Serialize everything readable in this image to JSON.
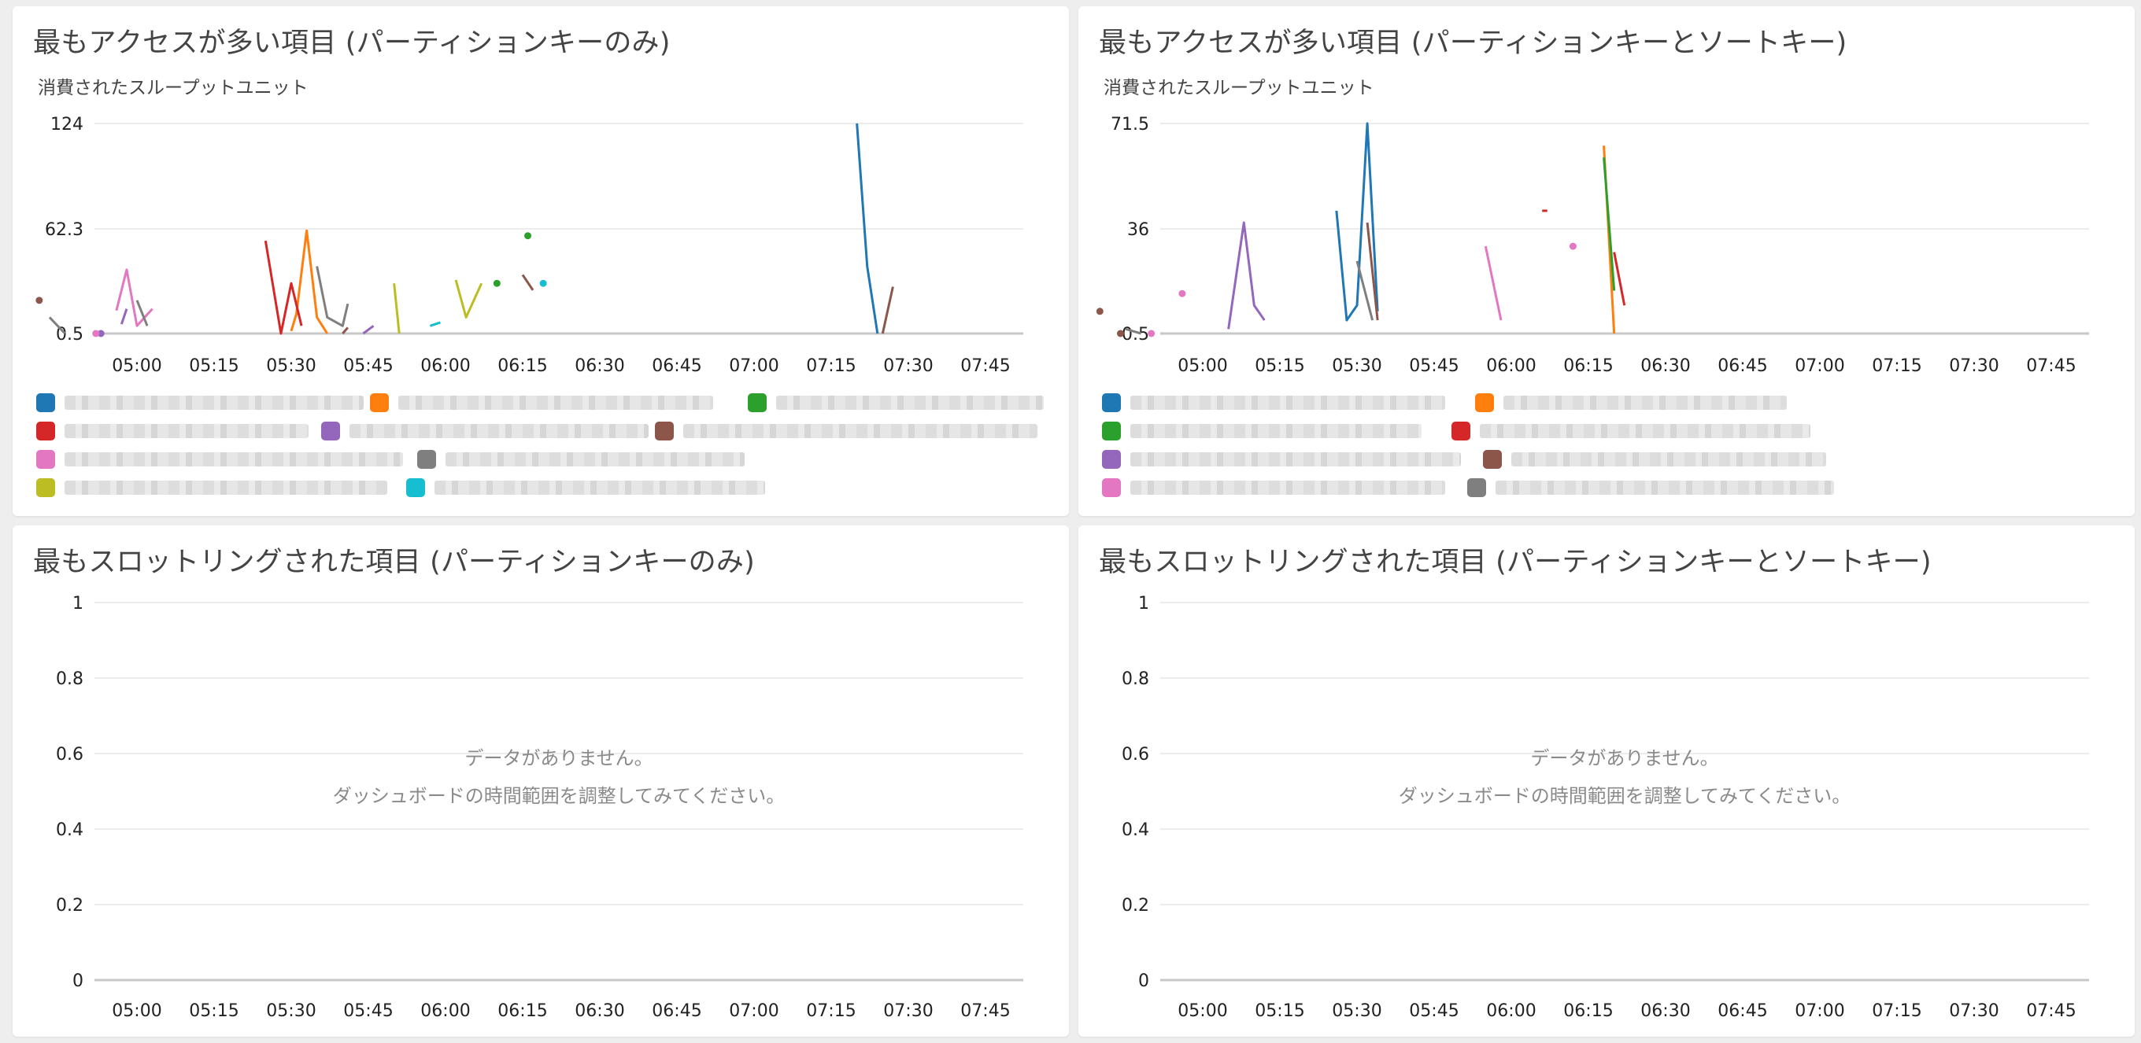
{
  "colors": {
    "c1": "#1f77b4",
    "c2": "#ff7f0e",
    "c3": "#2ca02c",
    "c4": "#d62728",
    "c5": "#9467bd",
    "c6": "#8c564b",
    "c7": "#e377c2",
    "c8": "#7f7f7f",
    "c9": "#bcbd22",
    "c10": "#17becf"
  },
  "panels": {
    "p1": {
      "title": "最もアクセスが多い項目 (パーティションキーのみ)",
      "unit": "消費されたスループットユニット"
    },
    "p2": {
      "title": "最もアクセスが多い項目 (パーティションキーとソートキー)",
      "unit": "消費されたスループットユニット"
    },
    "p3": {
      "title": "最もスロットリングされた項目 (パーティションキーのみ)",
      "nodata1": "データがありません。",
      "nodata2": "ダッシュボードの時間範囲を調整してみてください。"
    },
    "p4": {
      "title": "最もスロットリングされた項目 (パーティションキーとソートキー)",
      "nodata1": "データがありません。",
      "nodata2": "ダッシュボードの時間範囲を調整してみてください。"
    }
  },
  "chart_data": [
    {
      "type": "line",
      "ylabel": "消費されたスループットユニット",
      "yticks": [
        "124",
        "62.3",
        "0.5"
      ],
      "ylim": [
        0.5,
        124
      ],
      "xticks": [
        "05:00",
        "05:15",
        "05:30",
        "05:45",
        "06:00",
        "06:15",
        "06:30",
        "06:45",
        "07:00",
        "07:15",
        "07:30",
        "07:45"
      ],
      "series": [
        {
          "color": "#1f77b4",
          "points": [
            [
              440,
              124
            ],
            [
              442,
              40
            ],
            [
              444,
              0.5
            ]
          ]
        },
        {
          "color": "#ff7f0e",
          "points": [
            [
              330,
              2
            ],
            [
              331,
              12
            ],
            [
              333,
              61
            ],
            [
              335,
              10
            ],
            [
              337,
              0.5
            ]
          ]
        },
        {
          "color": "#2ca02c",
          "points": [
            [
              370,
              30
            ],
            [
              376,
              58
            ]
          ]
        },
        {
          "color": "#d62728",
          "points": [
            [
              325,
              55
            ],
            [
              328,
              0.5
            ],
            [
              330,
              30
            ],
            [
              332,
              5
            ]
          ]
        },
        {
          "color": "#9467bd",
          "points": [
            [
              293,
              0.5
            ],
            [
              297,
              6
            ],
            [
              298,
              15
            ],
            [
              344,
              0.5
            ],
            [
              346,
              5
            ]
          ]
        },
        {
          "color": "#8c564b",
          "points": [
            [
              281,
              20
            ],
            [
              340,
              0.5
            ],
            [
              341,
              4
            ],
            [
              375,
              35
            ],
            [
              377,
              26
            ],
            [
              445,
              0.5
            ],
            [
              447,
              28
            ]
          ]
        },
        {
          "color": "#e377c2",
          "points": [
            [
              292,
              0.5
            ],
            [
              296,
              14
            ],
            [
              298,
              38
            ],
            [
              300,
              5
            ],
            [
              303,
              15
            ]
          ]
        },
        {
          "color": "#7f7f7f",
          "points": [
            [
              283,
              10
            ],
            [
              286,
              0.5
            ],
            [
              300,
              20
            ],
            [
              302,
              5
            ],
            [
              335,
              40
            ],
            [
              337,
              10
            ],
            [
              340,
              5
            ],
            [
              341,
              18
            ]
          ]
        },
        {
          "color": "#bcbd22",
          "points": [
            [
              350,
              30
            ],
            [
              351,
              0.5
            ],
            [
              362,
              32
            ],
            [
              364,
              10
            ],
            [
              367,
              30
            ]
          ]
        },
        {
          "color": "#17becf",
          "points": [
            [
              357,
              5
            ],
            [
              359,
              7
            ],
            [
              379,
              30
            ]
          ]
        }
      ]
    },
    {
      "type": "line",
      "ylabel": "消費されたスループットユニット",
      "yticks": [
        "71.5",
        "36",
        "0.5"
      ],
      "ylim": [
        0.5,
        71.5
      ],
      "xticks": [
        "05:00",
        "05:15",
        "05:30",
        "05:45",
        "06:00",
        "06:15",
        "06:30",
        "06:45",
        "07:00",
        "07:15",
        "07:30",
        "07:45"
      ],
      "series": [
        {
          "color": "#1f77b4",
          "points": [
            [
              326,
              42
            ],
            [
              328,
              5
            ],
            [
              330,
              10
            ],
            [
              332,
              71.5
            ],
            [
              334,
              8
            ]
          ]
        },
        {
          "color": "#ff7f0e",
          "points": [
            [
              378,
              64
            ],
            [
              380,
              0.5
            ]
          ]
        },
        {
          "color": "#2ca02c",
          "points": [
            [
              378,
              60
            ],
            [
              380,
              15
            ]
          ]
        },
        {
          "color": "#d62728",
          "points": [
            [
              366,
              42
            ],
            [
              367,
              42
            ],
            [
              380,
              28
            ],
            [
              382,
              10
            ]
          ]
        },
        {
          "color": "#9467bd",
          "points": [
            [
              305,
              2
            ],
            [
              308,
              38
            ],
            [
              310,
              10
            ],
            [
              312,
              5
            ]
          ]
        },
        {
          "color": "#8c564b",
          "points": [
            [
              280,
              8
            ],
            [
              284,
              0.5
            ],
            [
              332,
              38
            ],
            [
              334,
              5
            ]
          ]
        },
        {
          "color": "#e377c2",
          "points": [
            [
              290,
              0.5
            ],
            [
              296,
              14
            ],
            [
              355,
              30
            ],
            [
              358,
              5
            ],
            [
              372,
              30
            ]
          ]
        },
        {
          "color": "#7f7f7f",
          "points": [
            [
              285,
              2
            ],
            [
              288,
              0.5
            ],
            [
              330,
              25
            ],
            [
              333,
              5
            ]
          ]
        }
      ]
    },
    {
      "type": "line",
      "yticks": [
        "1",
        "0.8",
        "0.6",
        "0.4",
        "0.2",
        "0"
      ],
      "ylim": [
        0,
        1
      ],
      "xticks": [
        "05:00",
        "05:15",
        "05:30",
        "05:45",
        "06:00",
        "06:15",
        "06:30",
        "06:45",
        "07:00",
        "07:15",
        "07:30",
        "07:45"
      ],
      "series": []
    },
    {
      "type": "line",
      "yticks": [
        "1",
        "0.8",
        "0.6",
        "0.4",
        "0.2",
        "0"
      ],
      "ylim": [
        0,
        1
      ],
      "xticks": [
        "05:00",
        "05:15",
        "05:30",
        "05:45",
        "06:00",
        "06:15",
        "06:30",
        "06:45",
        "07:00",
        "07:15",
        "07:30",
        "07:45"
      ],
      "series": []
    }
  ]
}
